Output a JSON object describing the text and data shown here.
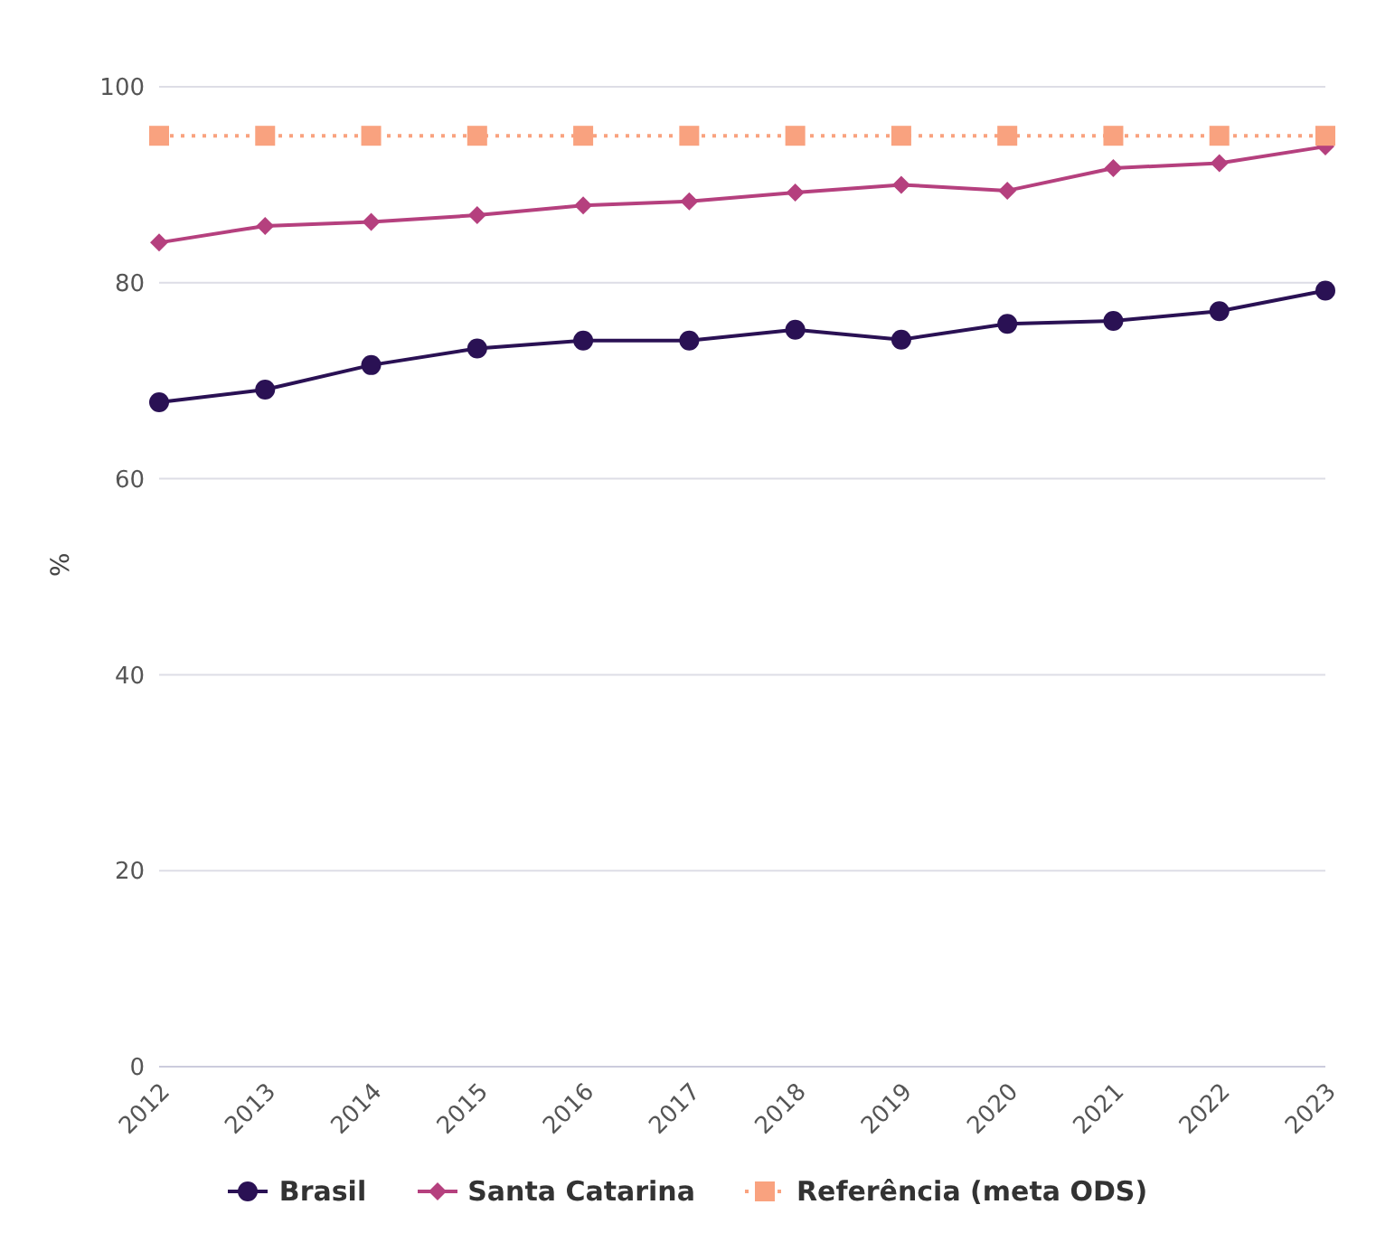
{
  "chart_data": {
    "type": "line",
    "ylabel": "%",
    "categories": [
      "2012",
      "2013",
      "2014",
      "2015",
      "2016",
      "2017",
      "2018",
      "2019",
      "2020",
      "2021",
      "2022",
      "2023"
    ],
    "series": [
      {
        "name": "Brasil",
        "color": "#2a1154",
        "marker": "circle",
        "line_style": "solid",
        "values": [
          67.8,
          69.1,
          71.6,
          73.3,
          74.1,
          74.1,
          75.2,
          74.2,
          75.8,
          76.1,
          77.1,
          79.2
        ]
      },
      {
        "name": "Santa Catarina",
        "color": "#b5407e",
        "marker": "diamond",
        "line_style": "solid",
        "values": [
          84.1,
          85.8,
          86.2,
          86.9,
          87.9,
          88.3,
          89.2,
          90.0,
          89.4,
          91.7,
          92.2,
          93.9
        ]
      },
      {
        "name": "Referência (meta ODS)",
        "color": "#f9a27f",
        "marker": "square",
        "line_style": "dotted",
        "values": [
          95,
          95,
          95,
          95,
          95,
          95,
          95,
          95,
          95,
          95,
          95,
          95
        ]
      }
    ],
    "ylim": [
      0,
      100
    ],
    "yticks": [
      0,
      20,
      40,
      60,
      80,
      100
    ],
    "grid": "y",
    "legend": "bottom"
  }
}
